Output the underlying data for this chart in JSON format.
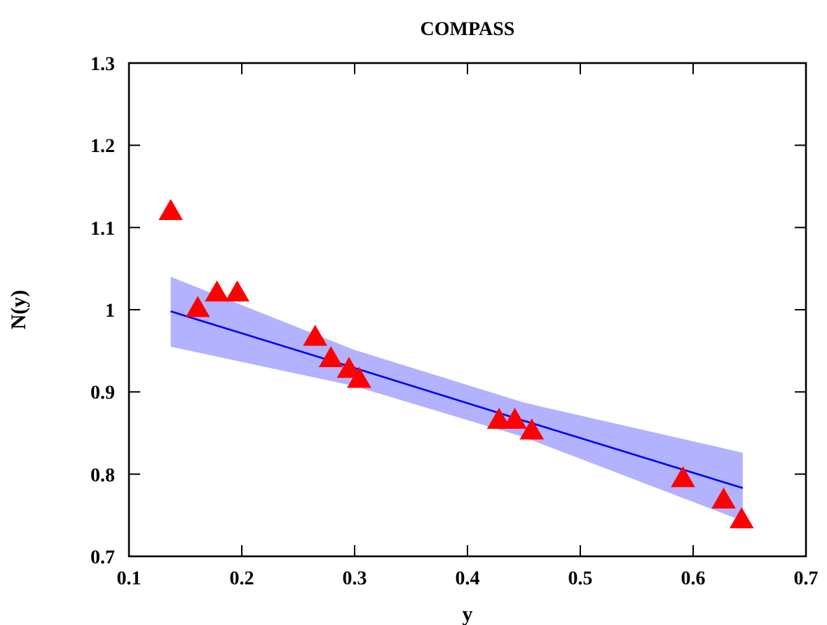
{
  "chart_data": {
    "type": "scatter",
    "title": "COMPASS",
    "xlabel": "y",
    "ylabel": "N(y)",
    "xlim": [
      0.1,
      0.7
    ],
    "xticks": [
      0.1,
      0.2,
      0.3,
      0.4,
      0.5,
      0.6,
      0.7
    ],
    "ylim": [
      0.7,
      1.3
    ],
    "yticks": [
      0.7,
      0.8,
      0.9,
      1,
      1.1,
      1.2,
      1.3
    ],
    "grid": false,
    "marker": "triangle",
    "series": [
      {
        "type": "line",
        "marker": "none",
        "color": "#0000ff",
        "x": [
          0.137,
          0.3,
          0.45,
          0.644
        ],
        "values": [
          0.998,
          0.929,
          0.865,
          0.783
        ],
        "lower": [
          0.955,
          0.907,
          0.845,
          0.743
        ],
        "upper": [
          1.04,
          0.951,
          0.887,
          0.826
        ]
      },
      {
        "color": "#ff0000",
        "x": [
          0.137,
          0.161,
          0.178,
          0.196,
          0.265,
          0.279,
          0.295,
          0.304,
          0.428,
          0.442,
          0.457,
          0.591,
          0.627,
          0.643
        ],
        "values": [
          1.121,
          1.003,
          1.022,
          1.022,
          0.968,
          0.942,
          0.929,
          0.917,
          0.867,
          0.867,
          0.854,
          0.796,
          0.77,
          0.746
        ]
      }
    ]
  }
}
